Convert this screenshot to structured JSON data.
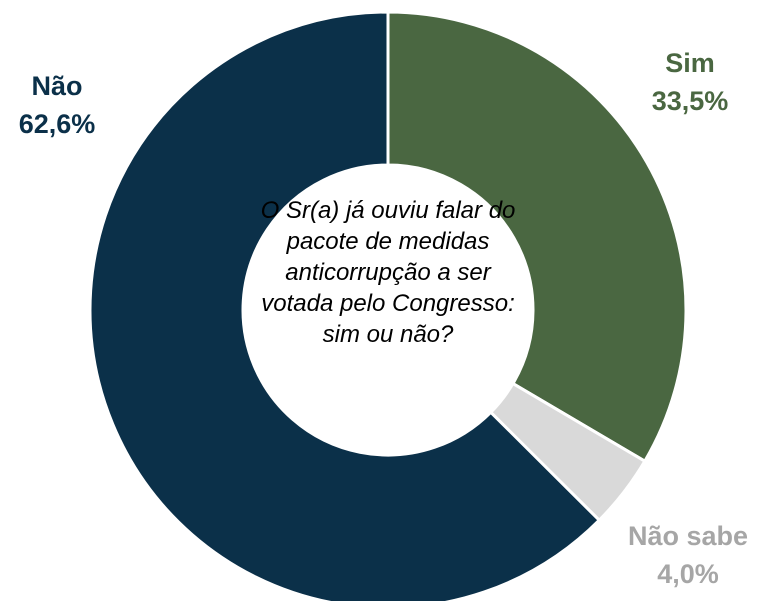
{
  "chart_data": {
    "type": "pie",
    "annotation": "O Sr(a) já ouviu falar do pacote de medidas anticorrupção a ser votada pelo Congresso: sim ou não?",
    "categories": [
      "Sim",
      "Não sabe",
      "Não"
    ],
    "values": [
      33.5,
      4.0,
      62.6
    ],
    "value_labels": [
      "33,5%",
      "4,0%",
      "62,6%"
    ],
    "colors": [
      "#4a6741",
      "#d9d9d9",
      "#0b3049"
    ],
    "label_colors": [
      "#4a6741",
      "#a6a6a6",
      "#0b3049"
    ]
  }
}
